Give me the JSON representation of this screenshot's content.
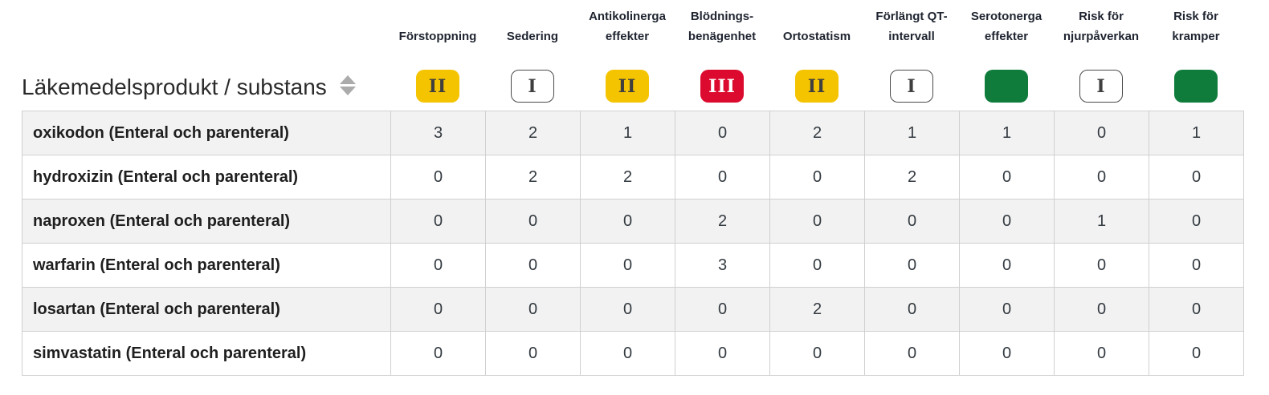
{
  "table": {
    "first_column_header": "Läkemedelsprodukt / substans",
    "columns": [
      {
        "label_lines": [
          "Förstoppning"
        ],
        "badge": {
          "level": "II",
          "color": "yellow"
        }
      },
      {
        "label_lines": [
          "Sedering"
        ],
        "badge": {
          "level": "I",
          "color": "white"
        }
      },
      {
        "label_lines": [
          "Antikolinerga",
          "effekter"
        ],
        "badge": {
          "level": "II",
          "color": "yellow"
        }
      },
      {
        "label_lines": [
          "Blödnings-",
          "benägenhet"
        ],
        "badge": {
          "level": "III",
          "color": "red"
        }
      },
      {
        "label_lines": [
          "Ortostatism"
        ],
        "badge": {
          "level": "II",
          "color": "yellow"
        }
      },
      {
        "label_lines": [
          "Förlängt QT-",
          "intervall"
        ],
        "badge": {
          "level": "I",
          "color": "white"
        }
      },
      {
        "label_lines": [
          "Serotonerga",
          "effekter"
        ],
        "badge": {
          "level": "",
          "color": "green"
        }
      },
      {
        "label_lines": [
          "Risk för",
          "njurpåverkan"
        ],
        "badge": {
          "level": "I",
          "color": "white"
        }
      },
      {
        "label_lines": [
          "Risk för",
          "kramper"
        ],
        "badge": {
          "level": "",
          "color": "green"
        }
      }
    ],
    "rows": [
      {
        "name": "oxikodon (Enteral och parenteral)",
        "values": [
          3,
          2,
          1,
          0,
          2,
          1,
          1,
          0,
          1
        ]
      },
      {
        "name": "hydroxizin (Enteral och parenteral)",
        "values": [
          0,
          2,
          2,
          0,
          0,
          2,
          0,
          0,
          0
        ]
      },
      {
        "name": "naproxen (Enteral och parenteral)",
        "values": [
          0,
          0,
          0,
          2,
          0,
          0,
          0,
          1,
          0
        ]
      },
      {
        "name": "warfarin (Enteral och parenteral)",
        "values": [
          0,
          0,
          0,
          3,
          0,
          0,
          0,
          0,
          0
        ]
      },
      {
        "name": "losartan (Enteral och parenteral)",
        "values": [
          0,
          0,
          0,
          0,
          2,
          0,
          0,
          0,
          0
        ]
      },
      {
        "name": "simvastatin (Enteral och parenteral)",
        "values": [
          0,
          0,
          0,
          0,
          0,
          0,
          0,
          0,
          0
        ]
      }
    ]
  },
  "colors": {
    "badge-yellow": "#F5C400",
    "badge-red": "#DC0A2E",
    "badge-green": "#0F7C3B",
    "badge-dark-text": "#3F3F3F",
    "cell-border": "#D0D0D0",
    "row-stripe": "#F2F2F2",
    "sort-icon-gray": "#ABABAB"
  }
}
